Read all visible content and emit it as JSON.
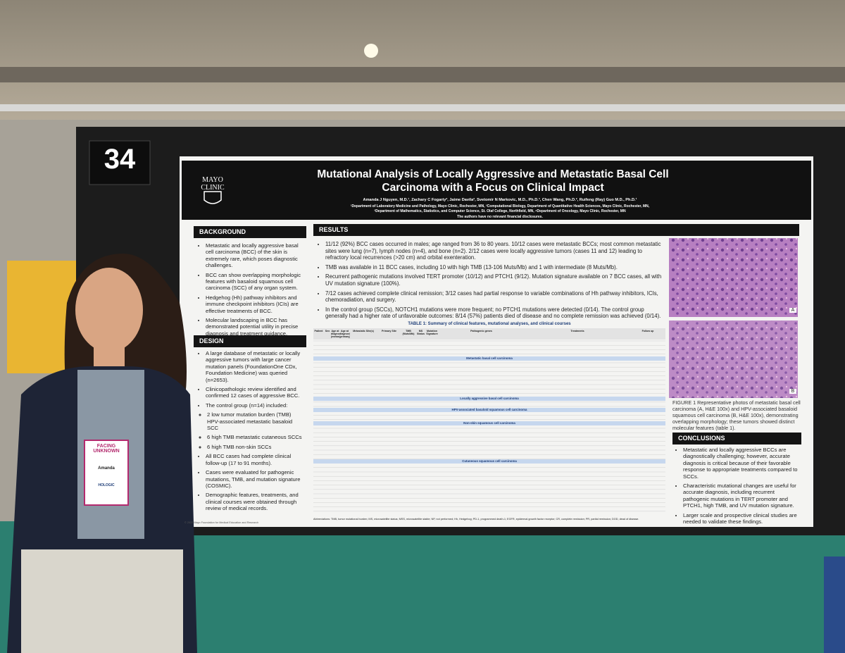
{
  "board_number": "34",
  "header": {
    "logo": [
      "MAYO",
      "CLINIC"
    ],
    "title": "Mutational Analysis of Locally Aggressive and Metastatic Basal Cell Carcinoma with a Focus on Clinical Impact",
    "authors": "Amanda J Nguyen, M.D.¹, Zachary C Fogarty², Jaime Davila², Svetomir N Markovic, M.D., Ph.D.³, Chen Wang, Ph.D.², Ruifeng (Ray) Guo M.D., Ph.D.¹",
    "affiliations": [
      "¹Department of Laboratory Medicine and Pathology, Mayo Clinic, Rochester, MN, ²Computational Biology, Department of Quantitative Health Sciences, Mayo Clinic, Rochester, MN,",
      "³Department of Mathematics, Statistics, and Computer Science, St. Olaf College, Northfield, MN, ⁴Department of Oncology, Mayo Clinic, Rochester, MN"
    ],
    "disclosure": "The authors have no relevant financial disclosures."
  },
  "background": {
    "heading": "BACKGROUND",
    "bullets": [
      "Metastatic and locally aggressive basal cell carcinoma (BCC) of the skin is extremely rare, which poses diagnostic challenges.",
      "BCC can show overlapping morphologic features with basaloid squamous cell carcinoma (SCC) of any organ system.",
      "Hedgehog (Hh) pathway inhibitors and immune checkpoint inhibitors (ICIs) are effective treatments of BCC.",
      "Molecular landscaping in BCC has demonstrated potential utility in precise diagnosis and treatment guidance."
    ]
  },
  "design": {
    "heading": "DESIGN",
    "bullets_before": [
      "A large database of metastatic or locally aggressive tumors with large cancer mutation panels (FoundationOne CDx, Foundation Medicine) was queried (n=2653).",
      "Clinicopathologic review identified and confirmed 12 cases of aggressive BCC.",
      "The control group (n=14) included:"
    ],
    "subitems": [
      "2 low tumor mutation burden (TMB) HPV-associated metastatic basaloid SCC",
      "6 high TMB metastatic cutaneous SCCs",
      "6 high TMB non-skin SCCs"
    ],
    "bullets_after": [
      "All BCC cases had complete clinical follow-up (17 to 91 months).",
      "Cases were evaluated for pathogenic mutations, TMB, and mutation signature (COSMIC).",
      "Demographic features, treatments, and clinical courses were obtained through review of medical records."
    ]
  },
  "results": {
    "heading": "RESULTS",
    "bullets": [
      "11/12 (92%) BCC cases occurred in males; age ranged from 36 to 80 years. 10/12 cases were metastatic BCCs; most common metastatic sites were lung (n=7), lymph nodes (n=4), and bone (n=2). 2/12 cases were locally aggressive tumors (cases 11 and 12) leading to refractory local recurrences (>20 cm) and orbital exenteration.",
      "TMB was available in 11 BCC cases, including 10 with high TMB (13-106 Muts/Mb) and 1 with intermediate (8 Muts/Mb).",
      "Recurrent pathogenic mutations involved TERT promoter (10/12) and PTCH1 (9/12). Mutation signature available on 7 BCC cases, all with UV mutation signature (100%).",
      "7/12 cases achieved complete clinical remission; 3/12 cases had partial response to variable combinations of Hh pathway inhibitors, ICIs, chemoradiation, and surgery.",
      "In the control group (SCCs), NOTCH1 mutations were more frequent; no PTCH1 mutations were detected (0/14). The control group generally had a higher rate of unfavorable outcomes: 8/14 (57%) patients died of disease and no complete remission was achieved (0/14)."
    ]
  },
  "table": {
    "caption": "TABLE 1: Summary of clinical features, mutational analyses, and clinical courses",
    "headers": [
      "Patient",
      "Sex",
      "Age at diagnosis (metastasis)",
      "Age at diagnosis (primary)",
      "Metastatic Site(s)",
      "Primary Site",
      "TMB (Muts/Mb)",
      "MS Status",
      "Mutation Signature",
      "Pathogenic genes",
      "Treatments",
      "Follow up"
    ],
    "sections": [
      "Metastatic basal cell carcinoma",
      "Locally aggressive basal cell carcinoma",
      "HPV-associated basaloid squamous cell carcinoma",
      "Non-skin squamous cell carcinoma",
      "Cutaneous squamous cell carcinoma"
    ],
    "footnote": "Abbreviations: TMB, tumor mutational burden; MS, microsatellite status; MSS, microsatellite stable; NP, not performed; Hh, Hedgehog; PD-1, programmed death-1; EGFR, epidermal growth factor receptor; CR, complete remission; PR, partial remission; DOD, dead of disease."
  },
  "figure": {
    "labels": [
      "A",
      "B"
    ],
    "caption": "FIGURE 1 Representative photos of metastatic basal cell carcinoma (A, H&E 100x) and HPV-associated basaloid squamous cell carcinoma (B, H&E 100x), demonstrating overlapping morphology; these tumors showed distinct molecular features (table 1)."
  },
  "conclusions": {
    "heading": "CONCLUSIONS",
    "bullets": [
      "Metastatic and locally aggressive BCCs are diagnostically challenging; however, accurate diagnosis is critical because of their favorable response to appropriate treatments compared to SCCs.",
      "Characteristic mutational changes are useful for accurate diagnosis, including recurrent pathogenic mutations in TERT promoter and PTCH1, high TMB, and UV mutation signature.",
      "Larger scale and prospective clinical studies are needed to validate these findings."
    ]
  },
  "footer": "© 2022 Mayo Foundation for Medical Education and Research",
  "badge": {
    "event": "FACING UNKNOWN",
    "name": "Amanda",
    "sponsor": "HOLOGIC"
  }
}
